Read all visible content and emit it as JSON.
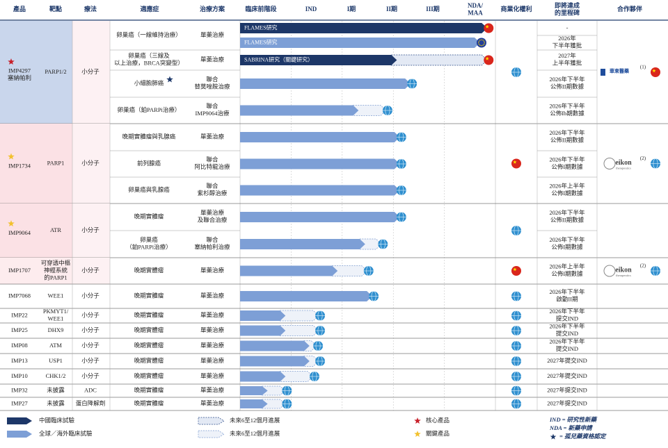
{
  "header": {
    "columns": [
      [
        "產品"
      ],
      [
        "靶點"
      ],
      [
        "療法"
      ],
      [
        "適應症"
      ],
      [
        "治療方案"
      ],
      [
        "臨床前階段"
      ],
      [
        "IND"
      ],
      [
        "I期"
      ],
      [
        "II期"
      ],
      [
        "III期"
      ],
      [
        "NDA/",
        "MAA"
      ],
      [
        "商業化權利"
      ],
      [
        "即將達成",
        "的里程碑"
      ],
      [
        "合作夥伴"
      ]
    ]
  },
  "stage_scale": {
    "lim": [
      0,
      5
    ]
  },
  "programs": [
    {
      "product": [
        "IMP4297",
        "塞納帕利"
      ],
      "star": "core",
      "target": [
        "PARP1/2"
      ],
      "modality": [
        "小分子"
      ],
      "rights": "global",
      "color": "#c9d6ec",
      "partner": {
        "logo": "huadong",
        "name": "華東醫藥",
        "note": "(1)",
        "icon": "china"
      },
      "trials": [
        {
          "indication": [
            "卵巢癌（一線維持治療）"
          ],
          "regimen": [
            "單藥治療"
          ],
          "bar": {
            "region": "china",
            "end": 4.84,
            "label": "FLAMES研究",
            "flag": "china"
          },
          "milestone": [
            "-"
          ]
        },
        {
          "indication": null,
          "regimen": null,
          "bar": {
            "region": "global",
            "end": 4.7,
            "label": "FLAMES研究",
            "flag": "eu"
          },
          "milestone": [
            "2026年",
            "下半年獲批"
          ]
        },
        {
          "indication": [
            "卵巢癌（三線及",
            "以上治療，BRCA突變型）"
          ],
          "regimen": [
            "單藥治療"
          ],
          "bar": {
            "region": "china",
            "end": 3.07,
            "future_end": 4.84,
            "label": "SABRINA研究（關鍵研究）",
            "flag": "china"
          },
          "milestone": [
            "2027年",
            "上半年獲批"
          ]
        },
        {
          "indication": [
            "小細胞肺癌"
          ],
          "orphan": true,
          "regimen": [
            "聯合",
            "替莫唑胺治療"
          ],
          "bar": {
            "region": "global",
            "end": 3.34,
            "flag": "global"
          },
          "milestone": [
            "2026年下半年",
            "公佈II期數據"
          ]
        },
        {
          "indication": [
            "卵巢癌（鉑PARPi治療）"
          ],
          "regimen": [
            "聯合",
            "IMP9064治療"
          ],
          "bar": {
            "region": "global",
            "end": 2.32,
            "future_end": 2.86,
            "flag": "global"
          },
          "milestone": [
            "2026年下半年",
            "公佈Ib期數據"
          ]
        }
      ]
    },
    {
      "product": [
        "IMP1734"
      ],
      "star": "key",
      "target": [
        "PARP1"
      ],
      "modality": [
        "小分子"
      ],
      "rights": "china",
      "color": "#fbe1e5",
      "partner": {
        "logo": "eikon",
        "name": "eikon",
        "sub": "therapeutics",
        "note": "(2)",
        "icon": "global"
      },
      "trials": [
        {
          "indication": [
            "晚期實體瘤與乳腺癌"
          ],
          "regimen": [
            "單藥治療"
          ],
          "bar": {
            "region": "global",
            "end": 3.13,
            "flag": "global"
          },
          "milestone": [
            "2026年下半年",
            "公佈II期數據"
          ]
        },
        {
          "indication": [
            "前列腺癌"
          ],
          "regimen": [
            "聯合",
            "阿比特龍治療"
          ],
          "bar": {
            "region": "global",
            "end": 3.13,
            "flag": "global"
          },
          "milestone": [
            "2026年下半年",
            "公佈I期數據"
          ]
        },
        {
          "indication": [
            "卵巢癌與乳腺癌"
          ],
          "regimen": [
            "聯合",
            "紫杉醇治療"
          ],
          "bar": {
            "region": "global",
            "end": 3.13,
            "flag": "global"
          },
          "milestone": [
            "2026年上半年",
            "公佈I期數據"
          ]
        }
      ]
    },
    {
      "product": [
        "IMP9064"
      ],
      "star": "key",
      "target": [
        "ATR"
      ],
      "modality": [
        "小分子"
      ],
      "rights": "global",
      "color": "#fbe1e5",
      "trials": [
        {
          "indication": [
            "晚期實體瘤"
          ],
          "regimen": [
            "單藥治療",
            "及聯合治療"
          ],
          "bar": {
            "region": "global",
            "end": 3.13,
            "flag": "global"
          },
          "milestone": [
            "2026年下半年",
            "公佈II期數據"
          ]
        },
        {
          "indication": [
            "卵巢癌",
            "（鉑PARPi治療）"
          ],
          "regimen": [
            "聯合",
            "塞納帕利治療"
          ],
          "bar": {
            "region": "global",
            "end": 2.45,
            "future_end": 2.77,
            "flag": "global"
          },
          "milestone": [
            "2026年下半年",
            "公佈I期數據"
          ]
        }
      ]
    },
    {
      "product": [
        "IMP1707"
      ],
      "target": [
        "可穿透中樞",
        "神經系統",
        "的PARP1"
      ],
      "modality": [
        "小分子"
      ],
      "rights": "china",
      "color": "#fdecee",
      "partner": {
        "logo": "eikon",
        "name": "eikon",
        "sub": "therapeutics",
        "note": "(2)",
        "icon": "global"
      },
      "trials": [
        {
          "indication": [
            "晚期實體瘤"
          ],
          "regimen": [
            "單藥治療"
          ],
          "bar": {
            "region": "global",
            "end": 1.91,
            "future_end": 2.49,
            "flag": "global"
          },
          "milestone": [
            "2026年上半年",
            "公佈I期數據"
          ]
        }
      ]
    },
    {
      "product": [
        "IMP7068"
      ],
      "target": [
        "WEE1"
      ],
      "modality": [
        "小分子"
      ],
      "rights": "global",
      "trials": [
        {
          "indication": [
            "晚期實體瘤"
          ],
          "regimen": [
            "單藥治療"
          ],
          "bar": {
            "region": "global",
            "end": 2.59,
            "flag": "global"
          },
          "milestone": [
            "2026年下半年",
            "啟動II期"
          ]
        }
      ]
    },
    {
      "product": [
        "IMP22"
      ],
      "target": [
        "PKMYT1/",
        "WEE1"
      ],
      "modality": [
        "小分子"
      ],
      "rights": "global",
      "trials": [
        {
          "indication": [
            "晚期實體瘤"
          ],
          "regimen": [
            "單藥治療"
          ],
          "bar": {
            "region": "global",
            "end": 0.89,
            "future_end": 1.54,
            "flag": "global"
          },
          "milestone": [
            "2026年下半年",
            "提交IND"
          ]
        }
      ]
    },
    {
      "product": [
        "IMP25"
      ],
      "target": [
        "DHX9"
      ],
      "modality": [
        "小分子"
      ],
      "rights": "global",
      "trials": [
        {
          "indication": [
            "晚期實體瘤"
          ],
          "regimen": [
            "單藥治療"
          ],
          "bar": {
            "region": "global",
            "end": 0.89,
            "future_end": 1.54,
            "flag": "global"
          },
          "milestone": [
            "2026年下半年",
            "提交IND"
          ]
        }
      ]
    },
    {
      "product": [
        "IMP08"
      ],
      "target": [
        "ATM"
      ],
      "modality": [
        "小分子"
      ],
      "rights": "global",
      "trials": [
        {
          "indication": [
            "晚期實體瘤"
          ],
          "regimen": [
            "單藥治療"
          ],
          "bar": {
            "region": "global",
            "end": 1.36,
            "future_end": 1.5,
            "flag": "global"
          },
          "milestone": [
            "2026年下半年",
            "提交IND"
          ]
        }
      ]
    },
    {
      "product": [
        "IMP13"
      ],
      "target": [
        "USP1"
      ],
      "modality": [
        "小分子"
      ],
      "rights": "global",
      "trials": [
        {
          "indication": [
            "晚期實體瘤"
          ],
          "regimen": [
            "單藥治療"
          ],
          "bar": {
            "region": "global",
            "end": 1.36,
            "future_end": 1.54,
            "flag": "global"
          },
          "milestone": [
            "2027年提交IND"
          ]
        }
      ]
    },
    {
      "product": [
        "IMP10"
      ],
      "target": [
        "CHK1/2"
      ],
      "modality": [
        "小分子"
      ],
      "rights": "global",
      "trials": [
        {
          "indication": [
            "晚期實體瘤"
          ],
          "regimen": [
            "單藥治療"
          ],
          "bar": {
            "region": "global",
            "end": 0.89,
            "future_end": 1.43,
            "flag": "global"
          },
          "milestone": [
            "2027年提交IND"
          ]
        }
      ]
    },
    {
      "product": [
        "IMP32"
      ],
      "target": [
        "未披露"
      ],
      "modality": [
        "ADC"
      ],
      "rights": "global",
      "trials": [
        {
          "indication": [
            "晚期實體瘤"
          ],
          "regimen": [
            "單藥治療"
          ],
          "bar": {
            "region": "global",
            "end": 0.54,
            "future_end": 0.89,
            "flag": "global"
          },
          "milestone": [
            "2027年提交IND"
          ]
        }
      ]
    },
    {
      "product": [
        "IMP27"
      ],
      "target": [
        "未披露"
      ],
      "modality": [
        "蛋白降解劑"
      ],
      "rights": "global",
      "trials": [
        {
          "indication": [
            "晚期實體瘤"
          ],
          "regimen": [
            "單藥治療"
          ],
          "bar": {
            "region": "global",
            "end": 0.54,
            "future_end": 0.89,
            "flag": "global"
          },
          "milestone": [
            "2027年提交IND"
          ]
        }
      ]
    }
  ],
  "legend": {
    "china_trial": "中國臨床試驗",
    "global_trial": "全球／海外臨床試驗",
    "future_china": "未來6至12個月進展",
    "future_global": "未來6至12個月進展",
    "core": "核心產品",
    "key": "關鍵產品",
    "notes": [
      "IND = 研究性新藥",
      "NDA = 新藥申請",
      "= 孤兒藥資格認定"
    ]
  }
}
